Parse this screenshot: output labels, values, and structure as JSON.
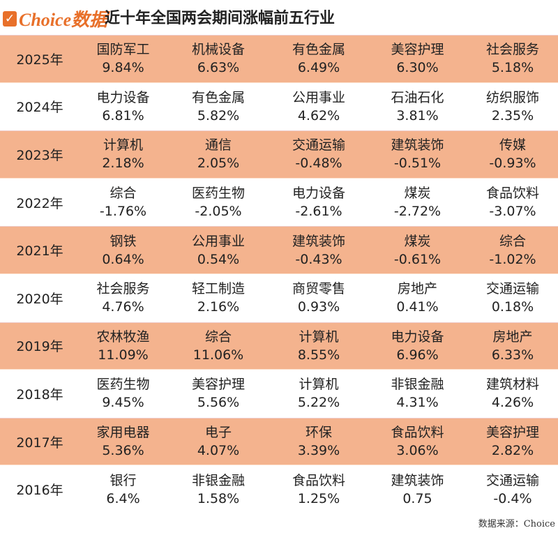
{
  "header": {
    "logo_text": "Choice数据",
    "title": "近十年全国两会期间涨幅前五行业"
  },
  "colors": {
    "highlight_row": "#f4b38e",
    "brand": "#e8702a"
  },
  "rows": [
    {
      "year": "2025年",
      "items": [
        {
          "name": "国防军工",
          "pct": "9.84%"
        },
        {
          "name": "机械设备",
          "pct": "6.63%"
        },
        {
          "name": "有色金属",
          "pct": "6.49%"
        },
        {
          "name": "美容护理",
          "pct": "6.30%"
        },
        {
          "name": "社会服务",
          "pct": "5.18%"
        }
      ]
    },
    {
      "year": "2024年",
      "items": [
        {
          "name": "电力设备",
          "pct": "6.81%"
        },
        {
          "name": "有色金属",
          "pct": "5.82%"
        },
        {
          "name": "公用事业",
          "pct": "4.62%"
        },
        {
          "name": "石油石化",
          "pct": "3.81%"
        },
        {
          "name": "纺织服饰",
          "pct": "2.35%"
        }
      ]
    },
    {
      "year": "2023年",
      "items": [
        {
          "name": "计算机",
          "pct": "2.18%"
        },
        {
          "name": "通信",
          "pct": "2.05%"
        },
        {
          "name": "交通运输",
          "pct": "-0.48%"
        },
        {
          "name": "建筑装饰",
          "pct": "-0.51%"
        },
        {
          "name": "传媒",
          "pct": "-0.93%"
        }
      ]
    },
    {
      "year": "2022年",
      "items": [
        {
          "name": "综合",
          "pct": "-1.76%"
        },
        {
          "name": "医药生物",
          "pct": "-2.05%"
        },
        {
          "name": "电力设备",
          "pct": "-2.61%"
        },
        {
          "name": "煤炭",
          "pct": "-2.72%"
        },
        {
          "name": "食品饮料",
          "pct": "-3.07%"
        }
      ]
    },
    {
      "year": "2021年",
      "items": [
        {
          "name": "钢铁",
          "pct": "0.64%"
        },
        {
          "name": "公用事业",
          "pct": "0.54%"
        },
        {
          "name": "建筑装饰",
          "pct": "-0.43%"
        },
        {
          "name": "煤炭",
          "pct": "-0.61%"
        },
        {
          "name": "综合",
          "pct": "-1.02%"
        }
      ]
    },
    {
      "year": "2020年",
      "items": [
        {
          "name": "社会服务",
          "pct": "4.76%"
        },
        {
          "name": "轻工制造",
          "pct": "2.16%"
        },
        {
          "name": "商贸零售",
          "pct": "0.93%"
        },
        {
          "name": "房地产",
          "pct": "0.41%"
        },
        {
          "name": "交通运输",
          "pct": "0.18%"
        }
      ]
    },
    {
      "year": "2019年",
      "items": [
        {
          "name": "农林牧渔",
          "pct": "11.09%"
        },
        {
          "name": "综合",
          "pct": "11.06%"
        },
        {
          "name": "计算机",
          "pct": "8.55%"
        },
        {
          "name": "电力设备",
          "pct": "6.96%"
        },
        {
          "name": "房地产",
          "pct": "6.33%"
        }
      ]
    },
    {
      "year": "2018年",
      "items": [
        {
          "name": "医药生物",
          "pct": "9.45%"
        },
        {
          "name": "美容护理",
          "pct": "5.56%"
        },
        {
          "name": "计算机",
          "pct": "5.22%"
        },
        {
          "name": "非银金融",
          "pct": "4.31%"
        },
        {
          "name": "建筑材料",
          "pct": "4.26%"
        }
      ]
    },
    {
      "year": "2017年",
      "items": [
        {
          "name": "家用电器",
          "pct": "5.36%"
        },
        {
          "name": "电子",
          "pct": "4.07%"
        },
        {
          "name": "环保",
          "pct": "3.39%"
        },
        {
          "name": "食品饮料",
          "pct": "3.06%"
        },
        {
          "name": "美容护理",
          "pct": "2.82%"
        }
      ]
    },
    {
      "year": "2016年",
      "items": [
        {
          "name": "银行",
          "pct": "6.4%"
        },
        {
          "name": "非银金融",
          "pct": "1.58%"
        },
        {
          "name": "食品饮料",
          "pct": "1.25%"
        },
        {
          "name": "建筑装饰",
          "pct": "0.75"
        },
        {
          "name": "交通运输",
          "pct": "-0.4%"
        }
      ]
    }
  ],
  "footer": {
    "source": "数据来源：Choice"
  }
}
